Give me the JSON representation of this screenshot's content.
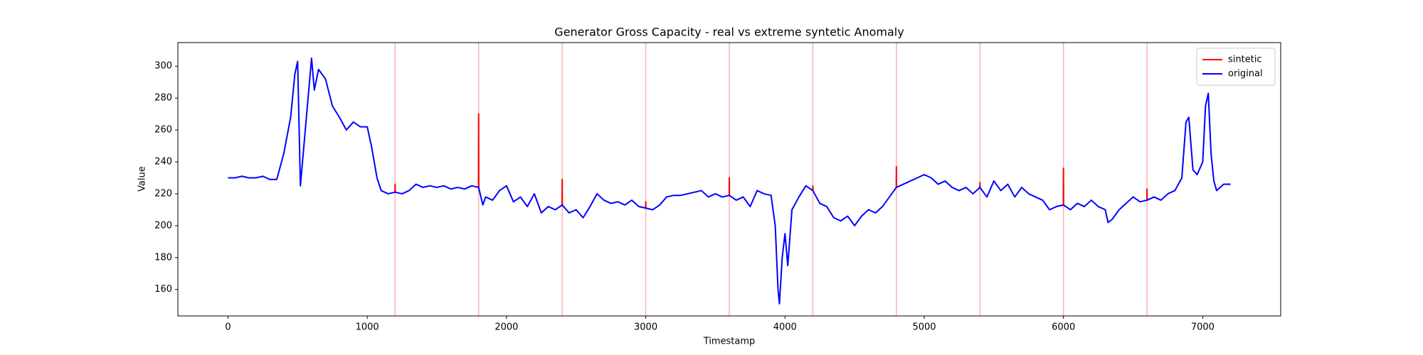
{
  "chart_data": {
    "type": "line",
    "title": "Generator Gross Capacity - real vs extreme syntetic Anomaly",
    "x_label": "Timestamp",
    "y_label": "Value",
    "xlim": [
      -360,
      7560
    ],
    "xticks": [
      0,
      1000,
      2000,
      3000,
      4000,
      5000,
      6000,
      7000
    ],
    "ylim": [
      143.4,
      314.8
    ],
    "yticks": [
      160,
      180,
      200,
      220,
      240,
      260,
      280,
      300
    ],
    "grid": false,
    "legend": "upper right",
    "anomaly_lines": {
      "color": "#ffb0b0",
      "x": [
        1200,
        1800,
        2400,
        3000,
        3600,
        4200,
        4800,
        5400,
        6000,
        6600
      ]
    },
    "series": [
      {
        "name": "sintetic",
        "color": "#ff0000",
        "x": [
          1199,
          1200,
          1201,
          1202,
          1799,
          1800,
          1801,
          1802,
          2399,
          2400,
          2401,
          2402,
          2999,
          3000,
          3001,
          3002,
          3599,
          3600,
          3601,
          3602,
          4199,
          4200,
          4201,
          4202,
          4799,
          4800,
          4801,
          4802,
          5399,
          5400,
          5401,
          5402,
          5999,
          6000,
          6001,
          6002,
          6599,
          6600,
          6601
        ],
        "values": [
          221,
          226,
          221,
          null,
          224,
          270,
          224,
          null,
          213,
          229,
          213,
          null,
          211,
          215,
          211,
          null,
          219,
          230,
          219,
          null,
          222,
          225,
          222,
          null,
          224,
          237,
          224,
          null,
          224,
          227,
          224,
          null,
          213,
          236,
          213,
          null,
          216,
          223,
          216
        ]
      },
      {
        "name": "original",
        "color": "#0000ff",
        "x": [
          0,
          50,
          100,
          150,
          200,
          250,
          300,
          350,
          400,
          450,
          480,
          500,
          520,
          550,
          600,
          620,
          650,
          700,
          750,
          800,
          850,
          900,
          950,
          1000,
          1030,
          1070,
          1100,
          1150,
          1200,
          1250,
          1300,
          1350,
          1400,
          1450,
          1500,
          1550,
          1600,
          1650,
          1700,
          1750,
          1800,
          1830,
          1850,
          1900,
          1950,
          2000,
          2050,
          2100,
          2150,
          2200,
          2250,
          2300,
          2350,
          2400,
          2450,
          2500,
          2550,
          2600,
          2650,
          2700,
          2750,
          2800,
          2850,
          2900,
          2950,
          3000,
          3050,
          3100,
          3150,
          3200,
          3250,
          3300,
          3350,
          3400,
          3450,
          3500,
          3550,
          3600,
          3650,
          3700,
          3750,
          3800,
          3850,
          3900,
          3930,
          3950,
          3960,
          3980,
          4000,
          4020,
          4050,
          4100,
          4150,
          4200,
          4250,
          4300,
          4350,
          4400,
          4450,
          4500,
          4550,
          4600,
          4650,
          4700,
          4750,
          4800,
          4850,
          4900,
          4950,
          5000,
          5050,
          5100,
          5150,
          5200,
          5250,
          5300,
          5350,
          5400,
          5450,
          5500,
          5550,
          5600,
          5650,
          5700,
          5750,
          5800,
          5850,
          5900,
          5950,
          6000,
          6050,
          6100,
          6150,
          6200,
          6250,
          6300,
          6320,
          6350,
          6400,
          6450,
          6500,
          6550,
          6600,
          6650,
          6700,
          6750,
          6800,
          6850,
          6880,
          6900,
          6930,
          6960,
          7000,
          7020,
          7040,
          7060,
          7080,
          7100,
          7150,
          7200
        ],
        "values": [
          230,
          230,
          231,
          230,
          230,
          231,
          229,
          229,
          245,
          268,
          295,
          303,
          225,
          255,
          305,
          285,
          298,
          292,
          275,
          268,
          260,
          265,
          262,
          262,
          250,
          230,
          222,
          220,
          221,
          220,
          222,
          226,
          224,
          225,
          224,
          225,
          223,
          224,
          223,
          225,
          224,
          213,
          218,
          216,
          222,
          225,
          215,
          218,
          212,
          220,
          208,
          212,
          210,
          213,
          208,
          210,
          205,
          212,
          220,
          216,
          214,
          215,
          213,
          216,
          212,
          211,
          210,
          213,
          218,
          219,
          219,
          220,
          221,
          222,
          218,
          220,
          218,
          219,
          216,
          218,
          212,
          222,
          220,
          219,
          200,
          160,
          151,
          180,
          195,
          175,
          210,
          218,
          225,
          222,
          214,
          212,
          205,
          203,
          206,
          200,
          206,
          210,
          208,
          212,
          218,
          224,
          226,
          228,
          230,
          232,
          230,
          226,
          228,
          224,
          222,
          224,
          220,
          224,
          218,
          228,
          222,
          226,
          218,
          224,
          220,
          218,
          216,
          210,
          212,
          213,
          210,
          214,
          212,
          216,
          212,
          210,
          202,
          204,
          210,
          214,
          218,
          215,
          216,
          218,
          216,
          220,
          222,
          230,
          265,
          268,
          235,
          232,
          240,
          275,
          283,
          245,
          228,
          222,
          226,
          226
        ]
      }
    ]
  }
}
